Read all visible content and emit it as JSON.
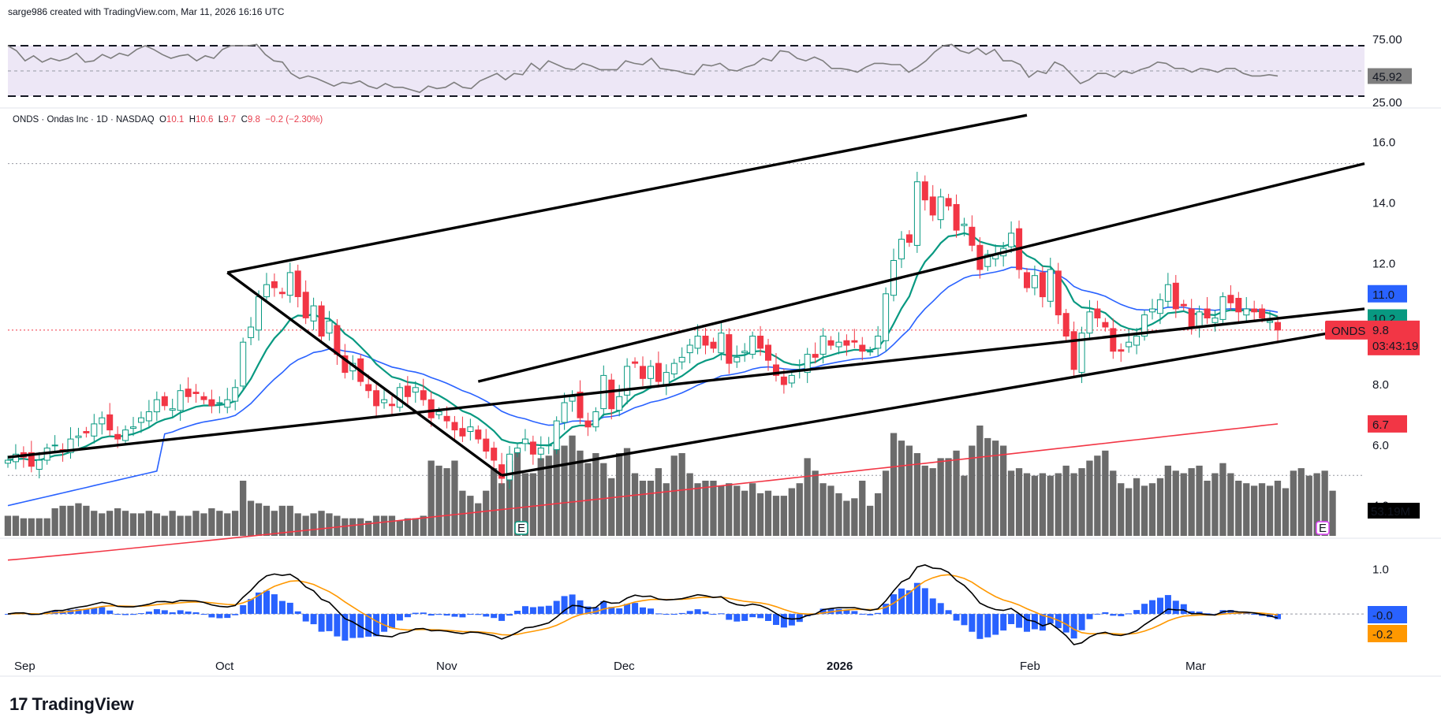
{
  "credit": "sarge986 created with TradingView.com, Mar 11, 2026 16:16 UTC",
  "legend": {
    "symbol": "ONDS · Ondas Inc · 1D · NASDAQ",
    "o_label": "O",
    "o": "10.1",
    "h_label": "H",
    "h": "10.6",
    "l_label": "L",
    "l": "9.7",
    "c_label": "C",
    "c": "9.8",
    "change": "−0.2 (−2.30%)"
  },
  "brand": "TradingView",
  "colors": {
    "up": "#089981",
    "down": "#f23645",
    "ema_fast": "#089981",
    "ema_slow": "#2962ff",
    "ema_long": "#f23645",
    "rsi": "#7e7e7e",
    "rsi_band": "#ede7f6",
    "macd": "#000000",
    "signal": "#ff9800",
    "hist_pos": "#2962ff",
    "volume": "#6b6b6b"
  },
  "chart_data": [
    {
      "type": "candlestick",
      "symbol": "ONDS",
      "x_ticks": [
        "Sep",
        "Oct",
        "Nov",
        "Dec",
        "2026",
        "Feb",
        "Mar"
      ],
      "y_ticks": [
        "16.0",
        "14.0",
        "12.0",
        "10.0",
        "8.0",
        "6.0",
        "4.0"
      ],
      "ylim": [
        3.0,
        16.8
      ],
      "price_labels": [
        {
          "text": "11.0",
          "value": 11.0,
          "color": "#2962ff"
        },
        {
          "text": "10.2",
          "value": 10.2,
          "color": "#089981"
        },
        {
          "text": "9.8",
          "value": 9.8,
          "color": "#f23645",
          "tag": "ONDS",
          "timer": "03:43:19"
        },
        {
          "text": "6.7",
          "value": 6.7,
          "color": "#f23645"
        }
      ],
      "closes": [
        5.5,
        5.7,
        5.6,
        5.3,
        5.5,
        5.9,
        6.0,
        5.8,
        6.2,
        6.3,
        6.4,
        6.7,
        6.9,
        6.5,
        6.2,
        6.5,
        6.6,
        6.9,
        7.1,
        7.5,
        7.3,
        7.2,
        7.8,
        7.6,
        7.7,
        7.5,
        7.3,
        7.4,
        7.5,
        7.9,
        9.4,
        9.9,
        10.9,
        11.3,
        11.2,
        11.0,
        11.7,
        10.9,
        10.2,
        10.6,
        9.6,
        10.1,
        9.0,
        8.4,
        8.7,
        8.1,
        7.8,
        7.3,
        7.5,
        7.3,
        7.9,
        7.6,
        7.9,
        7.5,
        6.9,
        7.1,
        6.8,
        6.5,
        6.3,
        6.6,
        6.2,
        5.8,
        5.5,
        4.9,
        5.7,
        5.9,
        6.2,
        5.7,
        5.9,
        6.0,
        6.8,
        7.4,
        7.6,
        6.9,
        6.6,
        7.1,
        8.3,
        7.2,
        7.6,
        8.6,
        8.7,
        8.2,
        8.6,
        8.1,
        8.4,
        8.7,
        8.9,
        9.3,
        9.6,
        9.3,
        9.2,
        9.7,
        8.7,
        8.9,
        9.1,
        9.6,
        9.2,
        8.8,
        8.3,
        8.0,
        8.3,
        8.5,
        9.0,
        8.9,
        9.6,
        9.3,
        9.4,
        9.3,
        9.4,
        9.1,
        9.1,
        9.6,
        11.0,
        12.1,
        12.8,
        12.7,
        14.7,
        14.1,
        13.6,
        14.2,
        13.9,
        13.1,
        13.3,
        12.6,
        11.8,
        12.3,
        12.3,
        12.5,
        13.0,
        11.8,
        11.2,
        11.6,
        10.9,
        11.8,
        10.3,
        9.6,
        8.5,
        9.7,
        10.4,
        10.2,
        9.9,
        9.1,
        9.1,
        9.4,
        9.6,
        10.3,
        10.5,
        10.8,
        11.3,
        10.5,
        10.6,
        9.9,
        10.4,
        10.2,
        10.2,
        10.9,
        10.7,
        10.4,
        10.5,
        10.4,
        10.2,
        10.1,
        9.8
      ],
      "volume": [
        8,
        8,
        7,
        7,
        7,
        7,
        11,
        12,
        12,
        13,
        12,
        10,
        9,
        10,
        11,
        10,
        9,
        9,
        10,
        9,
        8,
        10,
        8,
        8,
        10,
        9,
        11,
        10,
        9,
        10,
        22,
        14,
        13,
        12,
        10,
        12,
        12,
        9,
        8,
        9,
        10,
        9,
        8,
        7,
        7,
        7,
        6,
        8,
        8,
        8,
        6,
        7,
        7,
        8,
        30,
        28,
        27,
        30,
        18,
        16,
        13,
        18,
        27,
        21,
        30,
        34,
        25,
        25,
        31,
        32,
        35,
        36,
        40,
        34,
        29,
        33,
        29,
        23,
        33,
        35,
        25,
        22,
        22,
        27,
        21,
        32,
        33,
        25,
        21,
        22,
        22,
        20,
        21,
        20,
        18,
        21,
        17,
        18,
        16,
        16,
        19,
        21,
        31,
        26,
        21,
        20,
        17,
        14,
        15,
        22,
        12,
        17,
        26,
        41,
        38,
        36,
        33,
        28,
        27,
        31,
        31,
        34,
        24,
        36,
        44,
        39,
        38,
        36,
        26,
        27,
        25,
        24,
        25,
        24,
        25,
        28,
        25,
        27,
        30,
        32,
        34,
        26,
        21,
        19,
        23,
        20,
        21,
        23,
        28,
        26,
        25,
        27,
        28,
        22,
        25,
        29,
        25,
        22,
        21,
        20,
        21,
        20,
        22,
        19,
        26,
        27,
        24,
        25,
        26,
        18
      ],
      "volume_label": "53.19M",
      "trendlines": "rising channel from 5.0 (Nov) with upper rails near 15.3; falling line from 11.7 (Oct) to 5.0 (Nov)"
    },
    {
      "type": "line",
      "name": "RSI",
      "y_ticks": [
        "75.00",
        "25.00"
      ],
      "ylim": [
        25,
        75
      ],
      "last_value_label": "45.92",
      "values": [
        70,
        66,
        58,
        62,
        57,
        60,
        58,
        60,
        64,
        57,
        58,
        63,
        60,
        64,
        62,
        67,
        70,
        67,
        63,
        60,
        62,
        63,
        58,
        62,
        60,
        67,
        70,
        70,
        70,
        71,
        63,
        58,
        57,
        48,
        44,
        46,
        44,
        41,
        38,
        41,
        40,
        42,
        38,
        36,
        40,
        37,
        37,
        35,
        33,
        38,
        36,
        37,
        41,
        37,
        36,
        42,
        45,
        48,
        43,
        48,
        47,
        56,
        51,
        58,
        55,
        52,
        51,
        56,
        54,
        51,
        51,
        51,
        58,
        56,
        55,
        60,
        52,
        51,
        50,
        48,
        47,
        55,
        54,
        56,
        51,
        50,
        53,
        55,
        60,
        58,
        66,
        65,
        60,
        58,
        61,
        58,
        52,
        52,
        51,
        49,
        53,
        56,
        56,
        55,
        55,
        49,
        53,
        58,
        65,
        70,
        71,
        66,
        64,
        68,
        63,
        67,
        58,
        58,
        55,
        45,
        50,
        48,
        57,
        54,
        47,
        40,
        43,
        48,
        48,
        45,
        50,
        48,
        51,
        53,
        57,
        56,
        52,
        52,
        49,
        52,
        51,
        49,
        52,
        52,
        48,
        46,
        46,
        47,
        46
      ],
      "bands": [
        30,
        50,
        70
      ]
    },
    {
      "type": "macd",
      "y_ticks": [
        "1.0"
      ],
      "ylim": [
        -0.9,
        1.4
      ],
      "labels": [
        {
          "text": "-0.0",
          "value": 0.0,
          "color": "#2962ff"
        },
        {
          "text": "-0.2",
          "value": -0.2,
          "color": "#ff9800"
        }
      ]
    }
  ]
}
